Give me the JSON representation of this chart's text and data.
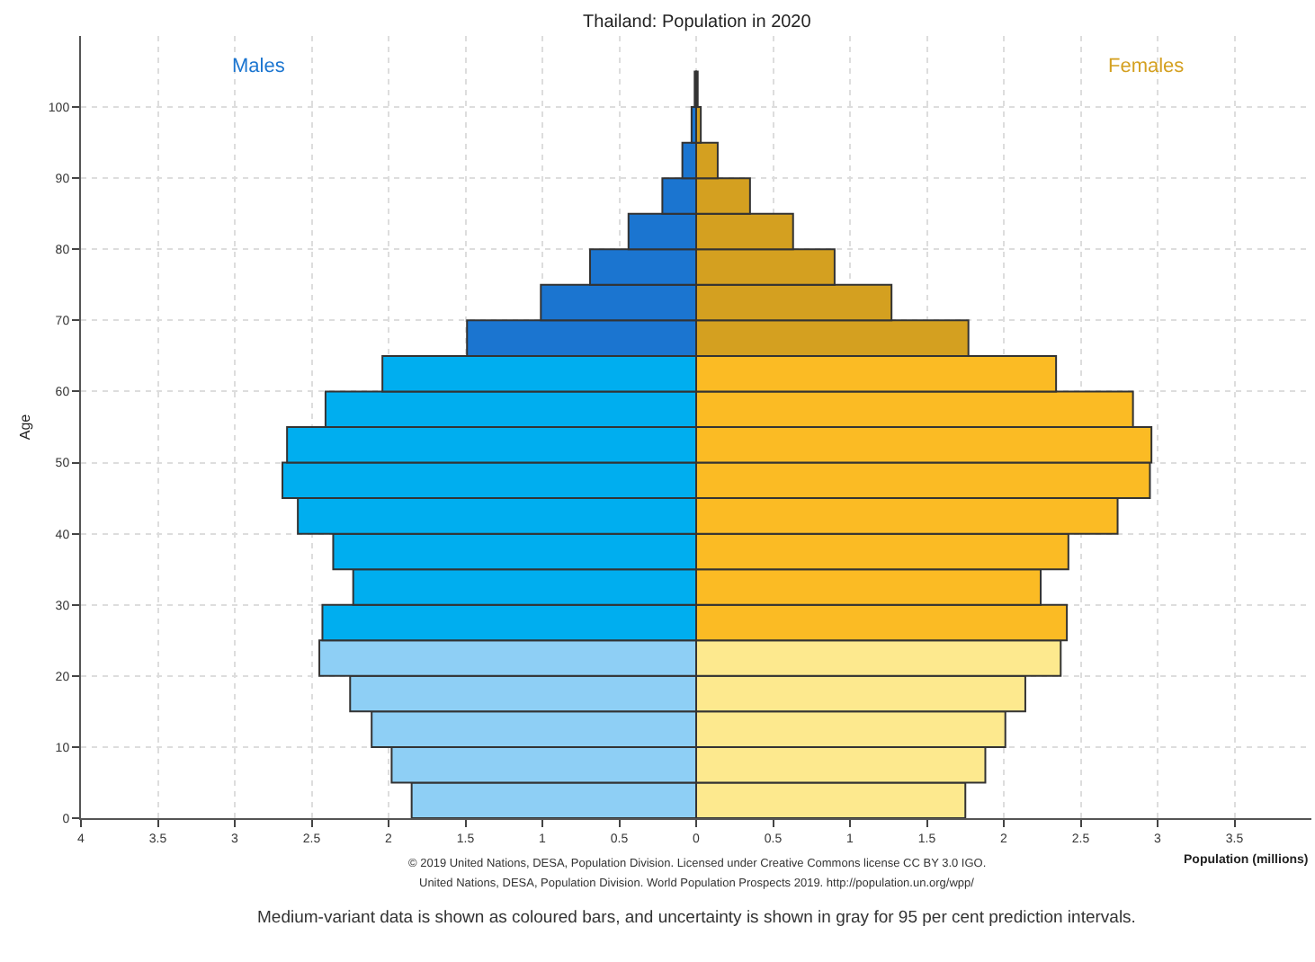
{
  "chart_data": {
    "type": "bar",
    "orientation": "horizontal",
    "title": "Thailand: Population in 2020",
    "xlabel": "Population (millions)",
    "ylabel": "Age",
    "x": [
      2.5,
      7.5,
      12.5,
      17.5,
      22.5,
      27.5,
      32.5,
      37.5,
      42.5,
      47.5,
      52.5,
      57.5,
      62.5,
      67.5,
      72.5,
      77.5,
      82.5,
      87.5,
      92.5,
      97.5,
      102.5
    ],
    "series": [
      {
        "name": "Males",
        "values": [
          -1.85,
          -1.98,
          -2.11,
          -2.25,
          -2.45,
          -2.43,
          -2.23,
          -2.36,
          -2.59,
          -2.69,
          -2.66,
          -2.41,
          -2.04,
          -1.49,
          -1.01,
          -0.69,
          -0.44,
          -0.22,
          -0.09,
          -0.03,
          -0.01
        ],
        "colors": [
          "#8ecff5",
          "#8ecff5",
          "#8ecff5",
          "#8ecff5",
          "#8ecff5",
          "#00aeef",
          "#00aeef",
          "#00aeef",
          "#00aeef",
          "#00aeef",
          "#00aeef",
          "#00aeef",
          "#00aeef",
          "#1b75d0",
          "#1b75d0",
          "#1b75d0",
          "#1b75d0",
          "#1b75d0",
          "#1b75d0",
          "#1b75d0",
          "#1b75d0"
        ]
      },
      {
        "name": "Females",
        "values": [
          1.75,
          1.88,
          2.01,
          2.14,
          2.37,
          2.41,
          2.24,
          2.42,
          2.74,
          2.95,
          2.96,
          2.84,
          2.34,
          1.77,
          1.27,
          0.9,
          0.63,
          0.35,
          0.14,
          0.03,
          0.01
        ],
        "colors": [
          "#fde98e",
          "#fde98e",
          "#fde98e",
          "#fde98e",
          "#fde98e",
          "#fbbb24",
          "#fbbb24",
          "#fbbb24",
          "#fbbb24",
          "#fbbb24",
          "#fbbb24",
          "#fbbb24",
          "#fbbb24",
          "#d4a020",
          "#d4a020",
          "#d4a020",
          "#d4a020",
          "#d4a020",
          "#d4a020",
          "#d4a020",
          "#d4a020"
        ]
      }
    ],
    "xlim": [
      -4,
      4
    ],
    "xticks": [
      {
        "value": -4,
        "label": "4"
      },
      {
        "value": -3.5,
        "label": "3.5"
      },
      {
        "value": -3,
        "label": "3"
      },
      {
        "value": -2.5,
        "label": "2.5"
      },
      {
        "value": -2,
        "label": "2"
      },
      {
        "value": -1.5,
        "label": "1.5"
      },
      {
        "value": -1,
        "label": "1"
      },
      {
        "value": -0.5,
        "label": "0.5"
      },
      0,
      0.5,
      1,
      1.5,
      2,
      2.5,
      3,
      3.5
    ],
    "ylim": [
      0,
      110
    ],
    "yticks": [
      0,
      10,
      20,
      30,
      40,
      50,
      60,
      70,
      80,
      90,
      100
    ],
    "grid": true,
    "legend": false,
    "stacked": true,
    "annotations": [
      "© 2019 United Nations, DESA, Population Division. Licensed under Creative Commons license CC BY 3.0 IGO.",
      "United Nations, DESA, Population Division. World Population Prospects 2019. http://population.un.org/wpp/",
      "Medium-variant data is shown as coloured bars, and uncertainty is shown in gray for 95 per cent prediction intervals."
    ]
  }
}
